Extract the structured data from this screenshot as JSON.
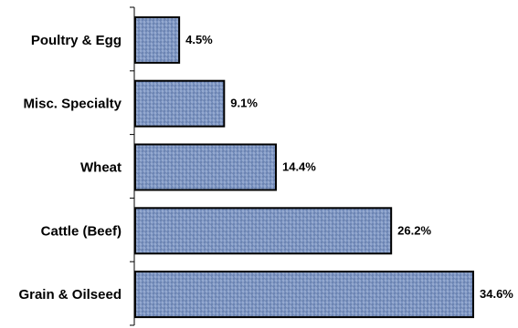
{
  "chart_data": {
    "type": "bar",
    "orientation": "horizontal",
    "categories": [
      "Poultry & Egg",
      "Misc. Specialty",
      "Wheat",
      "Cattle (Beef)",
      "Grain & Oilseed"
    ],
    "values": [
      4.5,
      9.1,
      14.4,
      26.2,
      34.6
    ],
    "value_labels": [
      "4.5%",
      "9.1%",
      "14.4%",
      "26.2%",
      "34.6%"
    ],
    "unit": "%",
    "title": "",
    "xlabel": "",
    "ylabel": "",
    "xlim": [
      0,
      35
    ],
    "grid": false,
    "legend": "none",
    "colors": {
      "bar_fill": "#7f97c4",
      "bar_texture_dark": "#3c5588",
      "bar_texture_light": "#c8d6ee",
      "bar_border": "#000000",
      "axis": "#000000",
      "text": "#000000"
    }
  }
}
